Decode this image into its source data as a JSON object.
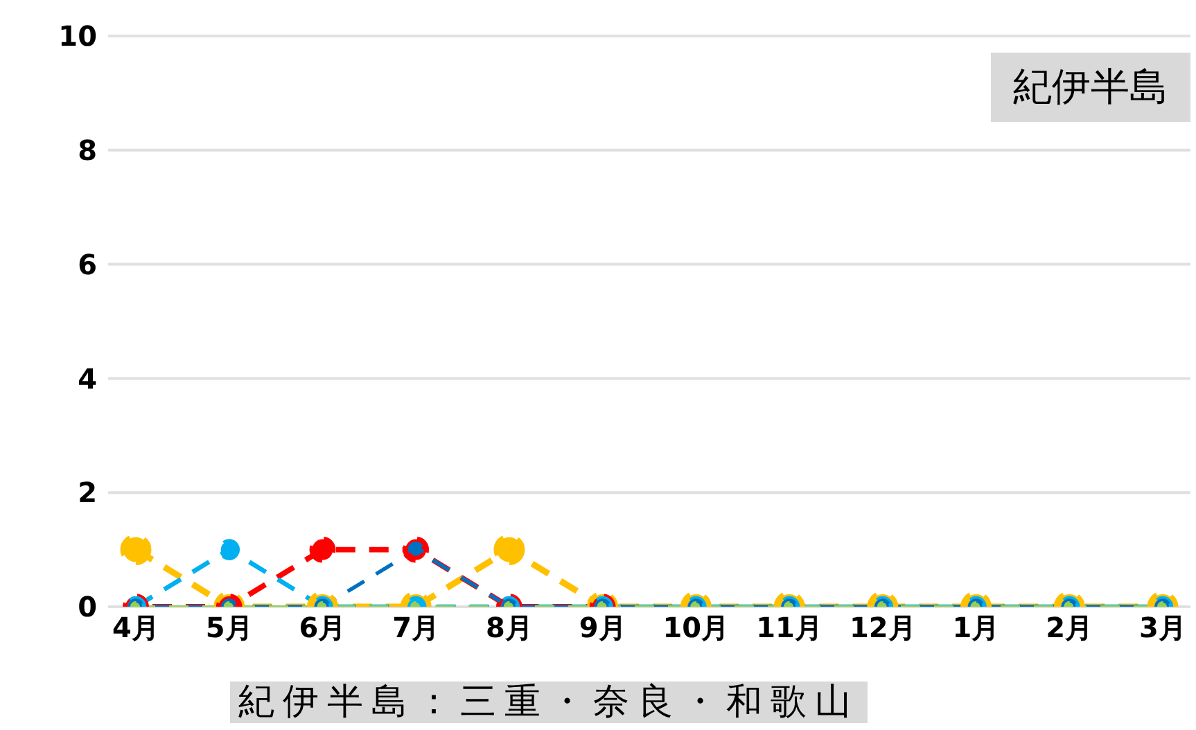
{
  "chart_data": {
    "type": "line",
    "categories": [
      "4月",
      "5月",
      "6月",
      "7月",
      "8月",
      "9月",
      "10月",
      "11月",
      "12月",
      "1月",
      "2月",
      "3月"
    ],
    "series": [
      {
        "color": "#ffc000",
        "values": [
          1,
          0,
          0,
          0,
          1,
          0,
          0,
          0,
          0,
          0,
          0,
          0
        ]
      },
      {
        "color": "#ff0000",
        "values": [
          0,
          0,
          1,
          1,
          0,
          0,
          null,
          null,
          null,
          null,
          null,
          null
        ]
      },
      {
        "color": "#00b0f0",
        "values": [
          0,
          1,
          0,
          0,
          0,
          0,
          0,
          0,
          0,
          0,
          0,
          0
        ]
      },
      {
        "color": "#0070c0",
        "values": [
          0,
          0,
          0,
          1,
          0,
          0,
          0,
          0,
          0,
          0,
          0,
          0
        ]
      },
      {
        "color": "#92d050",
        "values": [
          0,
          0,
          0,
          0,
          0,
          0,
          0,
          0,
          0,
          0,
          0,
          0
        ]
      }
    ],
    "ylim": [
      0,
      10
    ],
    "yticks": [
      0,
      2,
      4,
      6,
      8,
      10
    ],
    "grid": "y",
    "legend": false,
    "marker": "circle",
    "line_style": "dashed",
    "annotations": [
      "紀伊半島",
      "紀伊半島：三重・奈良・和歌山"
    ]
  }
}
